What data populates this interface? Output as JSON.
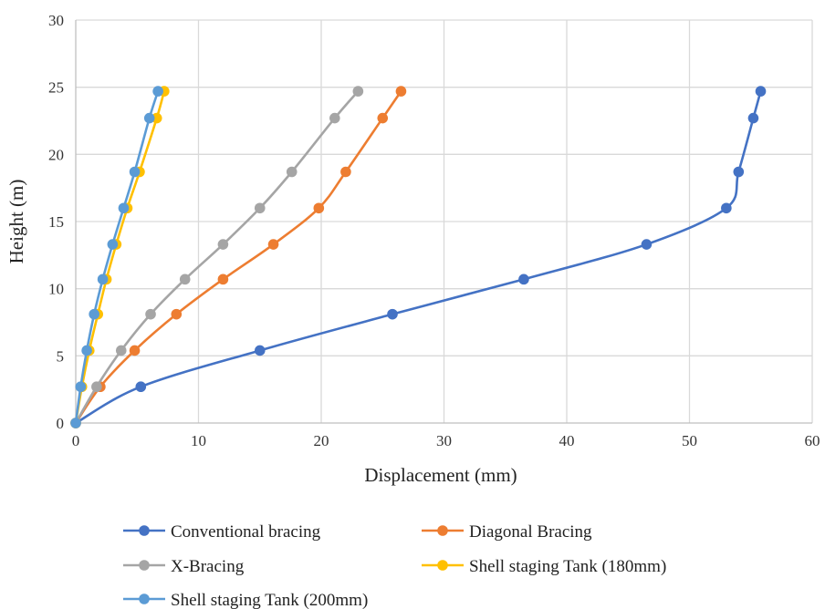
{
  "chart_data": {
    "type": "scatter",
    "title": "",
    "xlabel": "Displacement (mm)",
    "ylabel": "Height (m)",
    "xlim": [
      0,
      60
    ],
    "ylim": [
      0,
      30
    ],
    "x_ticks": [
      "0",
      "10",
      "20",
      "30",
      "40",
      "50",
      "60"
    ],
    "y_ticks": [
      "0",
      "5",
      "10",
      "15",
      "20",
      "25",
      "30"
    ],
    "grid": true,
    "smooth_lines": true,
    "legend_position": "bottom",
    "series": [
      {
        "name": "Conventional bracing",
        "color": "#4472C4",
        "points": [
          [
            0,
            0
          ],
          [
            5.3,
            2.7
          ],
          [
            15.0,
            5.4
          ],
          [
            25.8,
            8.1
          ],
          [
            36.5,
            10.7
          ],
          [
            46.5,
            13.3
          ],
          [
            53.0,
            16.0
          ],
          [
            54.0,
            18.7
          ],
          [
            55.2,
            22.7
          ],
          [
            55.8,
            24.7
          ]
        ]
      },
      {
        "name": "Diagonal Bracing",
        "color": "#ED7D31",
        "points": [
          [
            0,
            0
          ],
          [
            2.0,
            2.7
          ],
          [
            4.8,
            5.4
          ],
          [
            8.2,
            8.1
          ],
          [
            12.0,
            10.7
          ],
          [
            16.1,
            13.3
          ],
          [
            19.8,
            16.0
          ],
          [
            22.0,
            18.7
          ],
          [
            25.0,
            22.7
          ],
          [
            26.5,
            24.7
          ]
        ]
      },
      {
        "name": "X-Bracing",
        "color": "#A5A5A5",
        "points": [
          [
            0,
            0
          ],
          [
            1.7,
            2.7
          ],
          [
            3.7,
            5.4
          ],
          [
            6.1,
            8.1
          ],
          [
            8.9,
            10.7
          ],
          [
            12.0,
            13.3
          ],
          [
            15.0,
            16.0
          ],
          [
            17.6,
            18.7
          ],
          [
            21.1,
            22.7
          ],
          [
            23.0,
            24.7
          ]
        ]
      },
      {
        "name": "Shell staging Tank (180mm)",
        "color": "#FFC000",
        "points": [
          [
            0,
            0
          ],
          [
            0.5,
            2.7
          ],
          [
            1.1,
            5.4
          ],
          [
            1.8,
            8.1
          ],
          [
            2.5,
            10.7
          ],
          [
            3.3,
            13.3
          ],
          [
            4.2,
            16.0
          ],
          [
            5.2,
            18.7
          ],
          [
            6.6,
            22.7
          ],
          [
            7.2,
            24.7
          ]
        ]
      },
      {
        "name": "Shell staging Tank (200mm)",
        "color": "#5B9BD5",
        "points": [
          [
            0,
            0
          ],
          [
            0.4,
            2.7
          ],
          [
            0.9,
            5.4
          ],
          [
            1.5,
            8.1
          ],
          [
            2.2,
            10.7
          ],
          [
            3.0,
            13.3
          ],
          [
            3.9,
            16.0
          ],
          [
            4.8,
            18.7
          ],
          [
            6.0,
            22.7
          ],
          [
            6.7,
            24.7
          ]
        ]
      }
    ]
  }
}
